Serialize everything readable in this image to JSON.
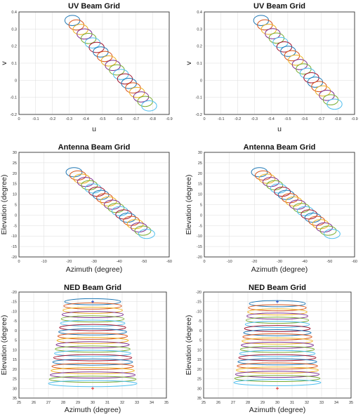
{
  "palette": [
    "#1f77b4",
    "#d95319",
    "#edb120",
    "#7e2f8e",
    "#77ac30",
    "#4dbeee",
    "#a2142f"
  ],
  "marker_colors": {
    "start": "#1f3fbf",
    "end": "#e03030"
  },
  "chart_data": [
    {
      "type": "scatter",
      "title": "UV Beam Grid",
      "xlabel": "u",
      "ylabel": "v",
      "xlim": [
        0,
        -0.9
      ],
      "ylim": [
        -0.2,
        0.4
      ],
      "xticks": [
        "0",
        "-0.1",
        "-0.2",
        "-0.3",
        "-0.4",
        "-0.5",
        "-0.6",
        "-0.7",
        "-0.8",
        "-0.9"
      ],
      "yticks": [
        "-0.2",
        "-0.1",
        "0",
        "0.1",
        "0.2",
        "0.3",
        "0.4"
      ],
      "grid": true,
      "rings": {
        "count": 20,
        "x_start": -0.32,
        "x_end": -0.78,
        "y_start": 0.35,
        "y_end": -0.15,
        "rx": 0.045,
        "ry": 0.03
      }
    },
    {
      "type": "scatter",
      "title": "UV Beam Grid",
      "xlabel": "u",
      "ylabel": "v",
      "xlim": [
        0,
        -0.9
      ],
      "ylim": [
        -0.2,
        0.4
      ],
      "xticks": [
        "0",
        "-0.1",
        "-0.2",
        "-0.3",
        "-0.4",
        "-0.5",
        "-0.6",
        "-0.7",
        "-0.8",
        "-0.9"
      ],
      "yticks": [
        "-0.2",
        "-0.1",
        "0",
        "0.1",
        "0.2",
        "0.3",
        "0.4"
      ],
      "grid": true,
      "rings": {
        "count": 20,
        "x_start": -0.34,
        "x_end": -0.78,
        "y_start": 0.35,
        "y_end": -0.14,
        "rx": 0.045,
        "ry": 0.03
      }
    },
    {
      "type": "scatter",
      "title": "Antenna Beam Grid",
      "xlabel": "Azimuth (degree)",
      "ylabel": "Elevation (degree)",
      "xlim": [
        0,
        -60
      ],
      "ylim": [
        -20,
        30
      ],
      "xticks": [
        "0",
        "-10",
        "-20",
        "-30",
        "-40",
        "-50",
        "-60"
      ],
      "yticks": [
        "-20",
        "-15",
        "-10",
        "-5",
        "0",
        "5",
        "10",
        "15",
        "20",
        "25",
        "30"
      ],
      "grid": true,
      "rings": {
        "count": 20,
        "x_start": -22,
        "x_end": -51,
        "y_start": 20.5,
        "y_end": -9,
        "rx": 3.2,
        "ry": 2.2
      }
    },
    {
      "type": "scatter",
      "title": "Antenna Beam Grid",
      "xlabel": "Azimuth (degree)",
      "ylabel": "Elevation (degree)",
      "xlim": [
        0,
        -60
      ],
      "ylim": [
        -20,
        30
      ],
      "xticks": [
        "0",
        "-10",
        "-20",
        "-30",
        "-40",
        "-50",
        "-60"
      ],
      "yticks": [
        "-20",
        "-15",
        "-10",
        "-5",
        "0",
        "5",
        "10",
        "15",
        "20",
        "25",
        "30"
      ],
      "grid": true,
      "rings": {
        "count": 20,
        "x_start": -22,
        "x_end": -51,
        "y_start": 20.5,
        "y_end": -9,
        "rx": 3.2,
        "ry": 2.2
      }
    },
    {
      "type": "scatter",
      "title": "NED Beam Grid",
      "xlabel": "Azimuth (degree)",
      "ylabel": "Elevation (degree)",
      "xlim": [
        25,
        35
      ],
      "ylim": [
        35,
        -20
      ],
      "xticks": [
        "25",
        "26",
        "27",
        "28",
        "29",
        "30",
        "31",
        "32",
        "33",
        "34",
        "35"
      ],
      "yticks": [
        "-20",
        "-15",
        "-10",
        "-5",
        "0",
        "5",
        "10",
        "15",
        "20",
        "25",
        "30",
        "35"
      ],
      "grid": true,
      "rings": {
        "count": 20,
        "x_center": 30,
        "y_start": -15,
        "y_end": 27.5,
        "rx_start": 1.9,
        "rx_end": 3.0,
        "ry": 1.6
      },
      "markers": [
        {
          "x": 30,
          "y": -15,
          "kind": "start"
        },
        {
          "x": 30,
          "y": 30,
          "kind": "end"
        }
      ]
    },
    {
      "type": "scatter",
      "title": "NED Beam Grid",
      "xlabel": "Azimuth (degree)",
      "ylabel": "Elevation (degree)",
      "xlim": [
        25,
        35
      ],
      "ylim": [
        35,
        -20
      ],
      "xticks": [
        "25",
        "26",
        "27",
        "28",
        "29",
        "30",
        "31",
        "32",
        "33",
        "34",
        "35"
      ],
      "yticks": [
        "-20",
        "-15",
        "-10",
        "-5",
        "0",
        "5",
        "10",
        "15",
        "20",
        "25",
        "30",
        "35"
      ],
      "grid": true,
      "rings": {
        "count": 20,
        "x_center": 30,
        "y_start": -14,
        "y_end": 27,
        "rx_start": 1.9,
        "rx_end": 2.95,
        "ry": 1.6
      },
      "markers": [
        {
          "x": 30,
          "y": -15,
          "kind": "start"
        },
        {
          "x": 30,
          "y": 30,
          "kind": "end"
        }
      ]
    }
  ]
}
